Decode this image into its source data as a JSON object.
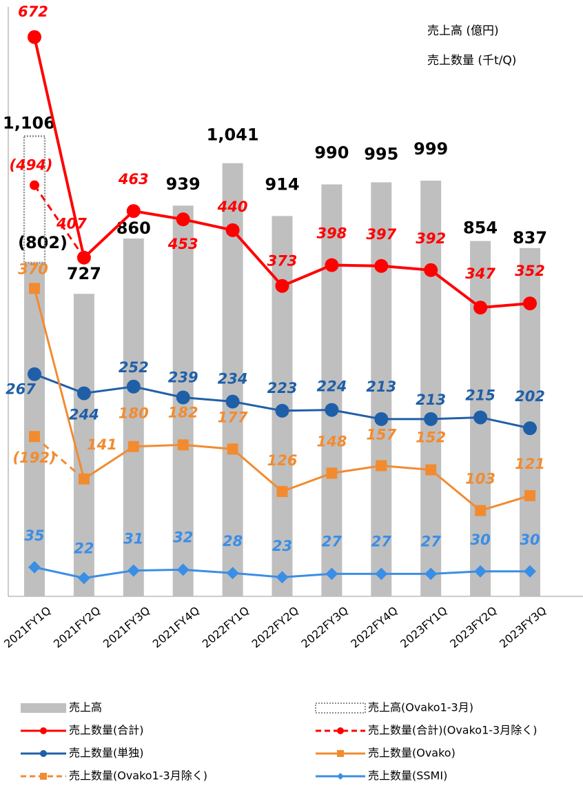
{
  "chart_data": {
    "type": "combo",
    "notes": [
      "売上高 (億円)",
      "売上数量 (千t/Q)"
    ],
    "categories": [
      "2021FY1Q",
      "2021FY2Q",
      "2021FY3Q",
      "2021FY4Q",
      "2022FY1Q",
      "2022FY2Q",
      "2022FY3Q",
      "2022FY4Q",
      "2023FY1Q",
      "2023FY2Q",
      "2023FY3Q"
    ],
    "ylim": [
      0,
      1400
    ],
    "y2lim": [
      0,
      700
    ],
    "series": [
      {
        "name": "売上高",
        "type": "bar",
        "color": "#bfbfbf",
        "values": [
          802,
          727,
          860,
          939,
          1041,
          914,
          990,
          995,
          999,
          854,
          837
        ],
        "value_labels": [
          "(802)",
          "727",
          "860",
          "939",
          "1,041",
          "914",
          "990",
          "995",
          "999",
          "854",
          "837"
        ]
      },
      {
        "name": "売上高(Ovako1-3月)",
        "type": "bar-outline",
        "color": "#8c8c8c",
        "values": [
          1106,
          null,
          null,
          null,
          null,
          null,
          null,
          null,
          null,
          null,
          null
        ],
        "value_labels": [
          "1,106",
          null,
          null,
          null,
          null,
          null,
          null,
          null,
          null,
          null,
          null
        ]
      },
      {
        "name": "売上数量(合計)",
        "type": "line",
        "axis": "y2",
        "color": "#ff0000",
        "marker": "circle",
        "values": [
          672,
          407,
          463,
          453,
          440,
          373,
          398,
          397,
          392,
          347,
          352
        ]
      },
      {
        "name": "売上数量(合計)(Ovako1-3月除く)",
        "type": "line",
        "axis": "y2",
        "dashed": true,
        "color": "#ff0000",
        "marker": "circle",
        "values": [
          494,
          407,
          null,
          null,
          null,
          null,
          null,
          null,
          null,
          null,
          null
        ],
        "value_labels": [
          "(494)",
          null,
          null,
          null,
          null,
          null,
          null,
          null,
          null,
          null,
          null
        ]
      },
      {
        "name": "売上数量(単独)",
        "type": "line",
        "axis": "y2",
        "color": "#1f5fa8",
        "marker": "circle",
        "values": [
          267,
          244,
          252,
          239,
          234,
          223,
          224,
          213,
          213,
          215,
          202
        ]
      },
      {
        "name": "売上数量(Ovako)",
        "type": "line",
        "axis": "y2",
        "color": "#f28b30",
        "marker": "square",
        "values": [
          370,
          141,
          180,
          182,
          177,
          126,
          148,
          157,
          152,
          103,
          121
        ]
      },
      {
        "name": "売上数量(Ovako1-3月除く)",
        "type": "line",
        "axis": "y2",
        "dashed": true,
        "color": "#f28b30",
        "marker": "square",
        "values": [
          192,
          141,
          null,
          null,
          null,
          null,
          null,
          null,
          null,
          null,
          null
        ],
        "value_labels": [
          "(192)",
          null,
          null,
          null,
          null,
          null,
          null,
          null,
          null,
          null,
          null
        ]
      },
      {
        "name": "売上数量(SSMI)",
        "type": "line",
        "axis": "y2",
        "color": "#3a8ee6",
        "marker": "diamond",
        "values": [
          35,
          22,
          31,
          32,
          28,
          23,
          27,
          27,
          27,
          30,
          30
        ]
      }
    ]
  }
}
